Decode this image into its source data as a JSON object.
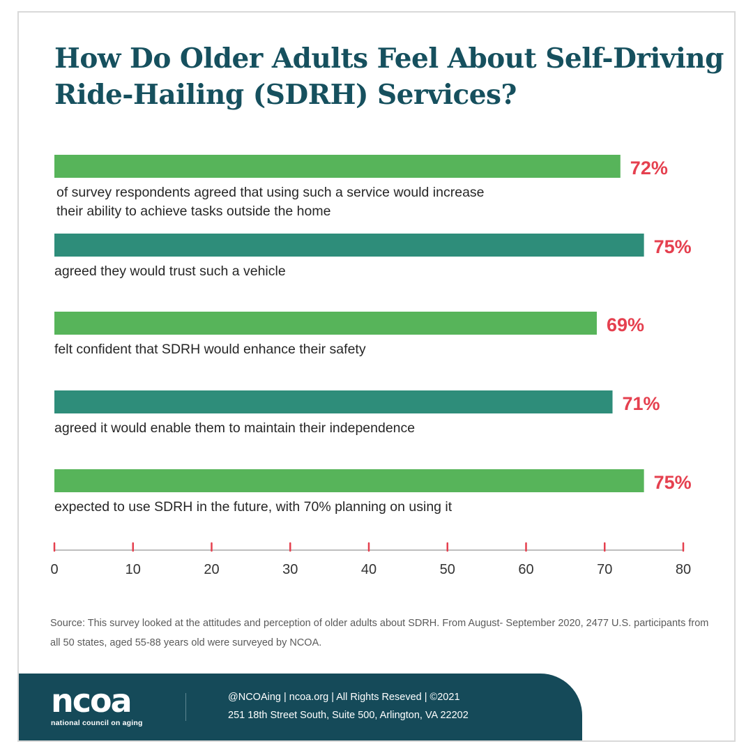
{
  "title": {
    "line1": "How Do Older Adults Feel About Self-Driving",
    "line2": "Ride-Hailing (SDRH) Services?"
  },
  "colors": {
    "bar_light": "#57b45a",
    "bar_dark": "#2e8d7a",
    "value_label": "#e5404f",
    "title": "#16505e",
    "axis_tick": "#e5404f",
    "footer_bg": "#154a59"
  },
  "chart_data": {
    "type": "bar",
    "orientation": "horizontal",
    "categories": [
      "of survey respondents agreed that using such a service would increase their ability to achieve tasks outside the home",
      "agreed they would trust such a vehicle",
      "felt confident that SDRH would enhance their safety",
      "agreed it would enable them to maintain their independence",
      "expected to use SDRH in the future, with 70% planning on using it"
    ],
    "description_lines": [
      [
        "of survey respondents agreed that using such a service would increase",
        "their ability to achieve tasks outside the home"
      ],
      [
        "agreed they would trust such a vehicle"
      ],
      [
        "felt confident that SDRH would enhance their safety"
      ],
      [
        "agreed it would enable them to maintain their independence"
      ],
      [
        "expected to use SDRH in the future, with 70% planning on using it"
      ]
    ],
    "values": [
      72,
      75,
      69,
      71,
      75
    ],
    "value_labels": [
      "72%",
      "75%",
      "69%",
      "71%",
      "75%"
    ],
    "bar_colors": [
      "bar_light",
      "bar_dark",
      "bar_light",
      "bar_dark",
      "bar_light"
    ],
    "xlim": [
      0,
      80
    ],
    "xticks": [
      0,
      10,
      20,
      30,
      40,
      50,
      60,
      70,
      80
    ],
    "xtick_labels": [
      "0",
      "10",
      "20",
      "30",
      "40",
      "50",
      "60",
      "70",
      "80"
    ],
    "xlabel": "",
    "ylabel": "",
    "grid": false,
    "legend": "none"
  },
  "source": {
    "text": "Source: This survey looked at the attitudes and perception of older adults about SDRH. From August- September 2020, 2477 U.S. participants from all 50 states, aged 55-88 years old were surveyed by NCOA."
  },
  "footer": {
    "logo_word": "ncoa",
    "logo_tagline": "national council on aging",
    "line1": "@NCOAing  |  ncoa.org  |  All Rights Reseved  |  ©2021",
    "line2": "251 18th Street South, Suite 500, Arlington, VA 22202"
  }
}
